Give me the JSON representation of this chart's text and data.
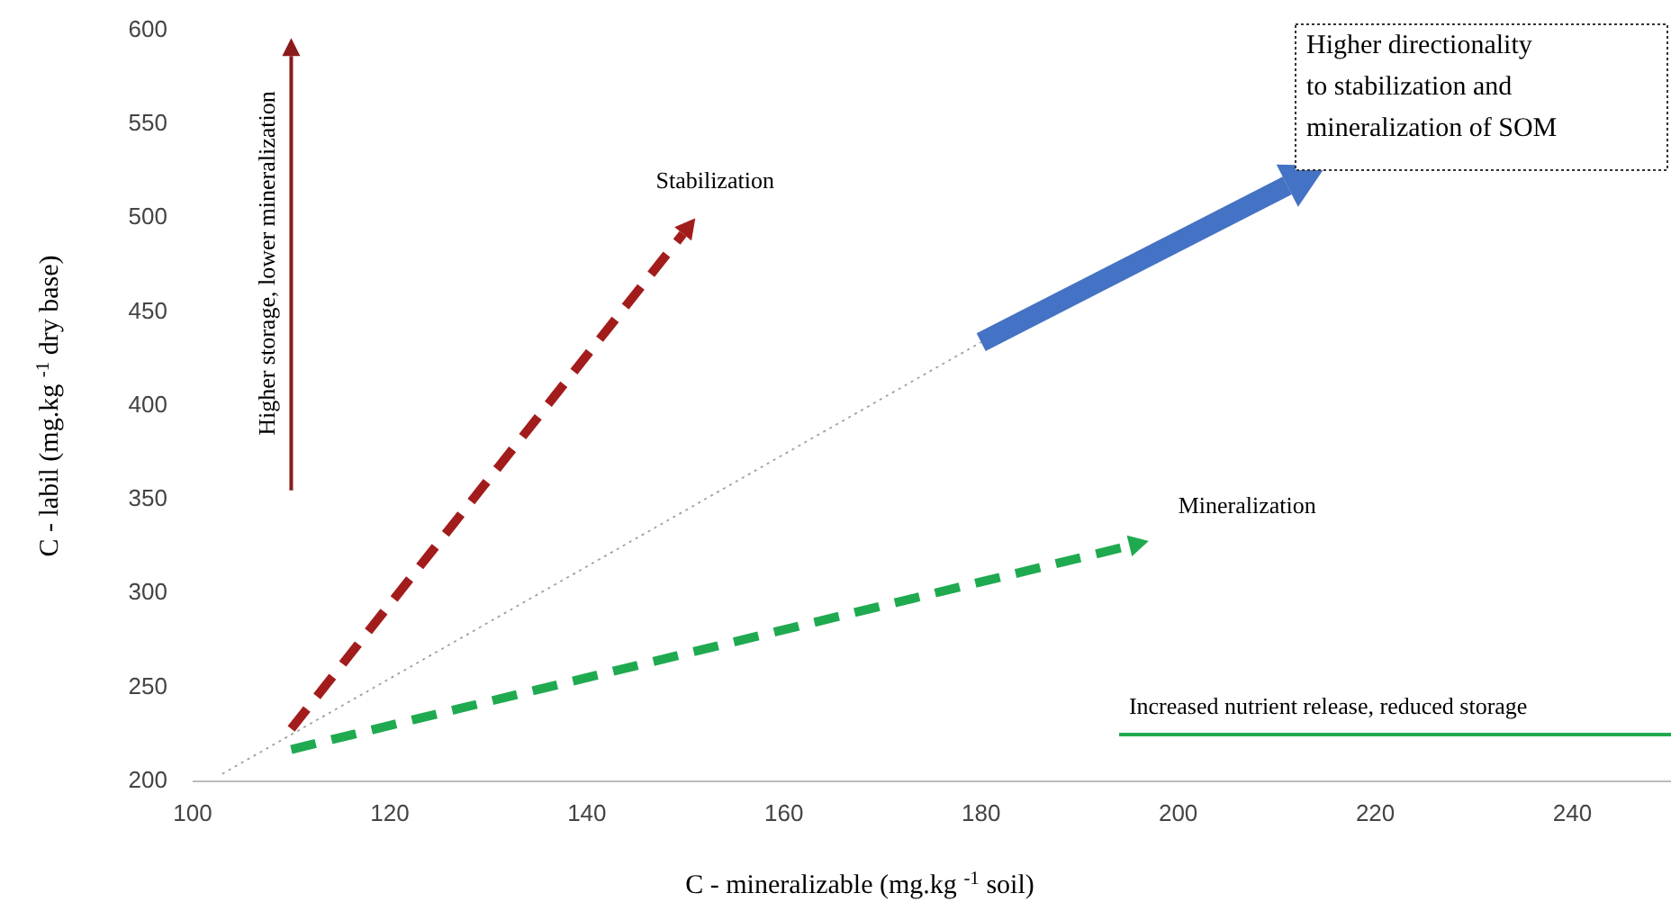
{
  "chart_data": {
    "type": "line",
    "xlabel": "C - mineralizable  (mg.kg $^{-1}$ soil)",
    "ylabel": "C - labil (mg.kg $^{-1}$ dry  base)",
    "xlim": [
      100,
      250
    ],
    "ylim": [
      200,
      600
    ],
    "xticks": [
      100,
      120,
      140,
      160,
      180,
      200,
      220,
      240
    ],
    "yticks": [
      200,
      250,
      300,
      350,
      400,
      450,
      500,
      550,
      600
    ],
    "grid": false,
    "series": [
      {
        "color": "#a0a0a0",
        "line_style": "dotted",
        "x": [
          103,
          180
        ],
        "values": [
          204,
          434
        ]
      },
      {
        "color": "#1faa50",
        "line_style": "solid",
        "x": [
          194,
          250
        ],
        "values": [
          225,
          225
        ]
      }
    ],
    "annotations": [
      "Higher storage, lower mineralization",
      "Stabilization",
      "Mineralization",
      "Higher directionality to stabilization and mineralization of SOM",
      "Increased nutrient release, reduced storage"
    ]
  }
}
